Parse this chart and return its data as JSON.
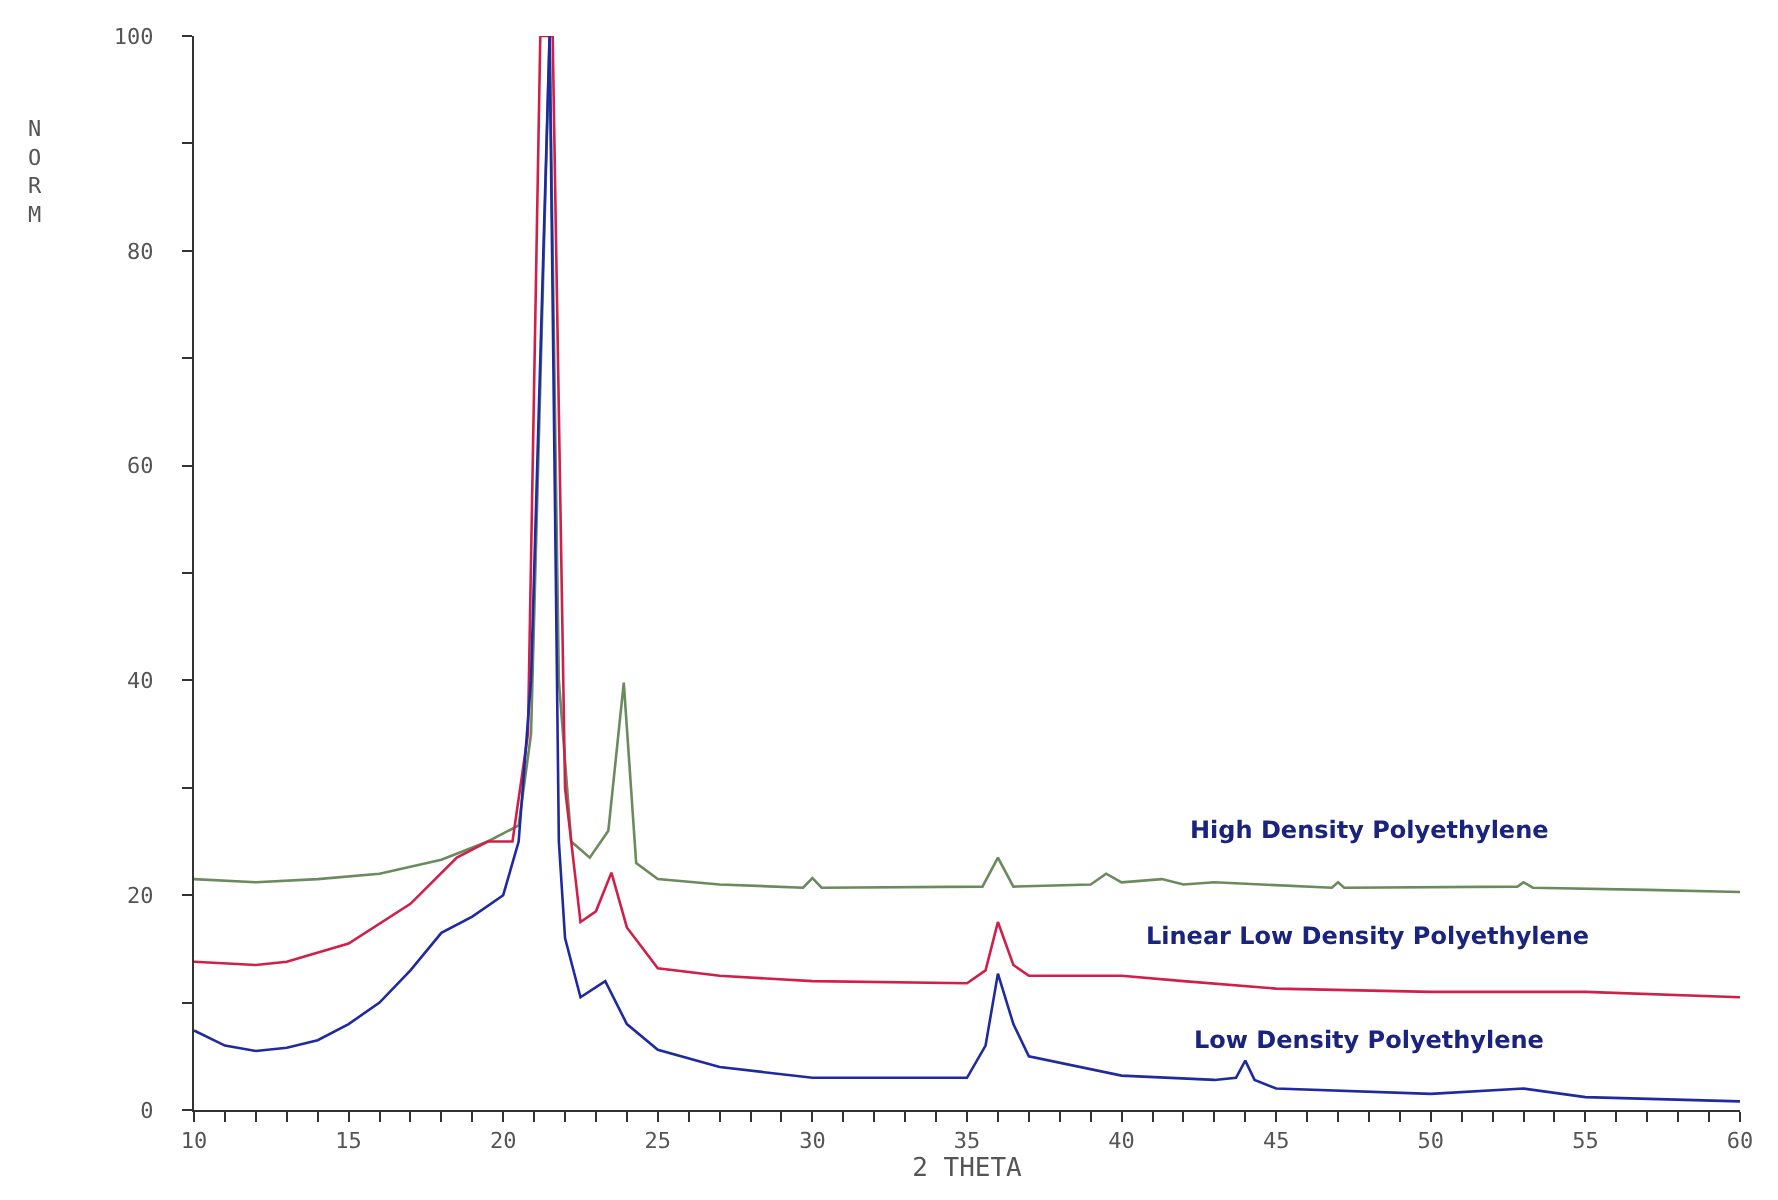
{
  "chart_data": {
    "type": "line",
    "xlabel": "2 THETA",
    "ylabel": "NORM",
    "xlim": [
      10,
      60
    ],
    "ylim": [
      0,
      100
    ],
    "xticks": [
      10,
      {
        "value": 11,
        "label": null
      },
      {
        "value": 12,
        "label": null
      },
      {
        "value": 13,
        "label": null
      },
      {
        "value": 14,
        "label": null
      },
      15,
      {
        "value": 16,
        "label": null
      },
      {
        "value": 17,
        "label": null
      },
      {
        "value": 18,
        "label": null
      },
      {
        "value": 19,
        "label": null
      },
      20,
      {
        "value": 21,
        "label": null
      },
      {
        "value": 22,
        "label": null
      },
      {
        "value": 23,
        "label": null
      },
      {
        "value": 24,
        "label": null
      },
      25,
      {
        "value": 26,
        "label": null
      },
      {
        "value": 27,
        "label": null
      },
      {
        "value": 28,
        "label": null
      },
      {
        "value": 29,
        "label": null
      },
      30,
      {
        "value": 31,
        "label": null
      },
      {
        "value": 32,
        "label": null
      },
      {
        "value": 33,
        "label": null
      },
      {
        "value": 34,
        "label": null
      },
      35,
      {
        "value": 36,
        "label": null
      },
      {
        "value": 37,
        "label": null
      },
      {
        "value": 38,
        "label": null
      },
      {
        "value": 39,
        "label": null
      },
      40,
      {
        "value": 41,
        "label": null
      },
      {
        "value": 42,
        "label": null
      },
      {
        "value": 43,
        "label": null
      },
      {
        "value": 44,
        "label": null
      },
      45,
      {
        "value": 46,
        "label": null
      },
      {
        "value": 47,
        "label": null
      },
      {
        "value": 48,
        "label": null
      },
      {
        "value": 49,
        "label": null
      },
      50,
      {
        "value": 51,
        "label": null
      },
      {
        "value": 52,
        "label": null
      },
      {
        "value": 53,
        "label": null
      },
      {
        "value": 54,
        "label": null
      },
      55,
      {
        "value": 56,
        "label": null
      },
      {
        "value": 57,
        "label": null
      },
      {
        "value": 58,
        "label": null
      },
      {
        "value": 59,
        "label": null
      },
      60
    ],
    "yticks": [
      0,
      {
        "value": 10,
        "label": null
      },
      20,
      {
        "value": 30,
        "label": null
      },
      40,
      {
        "value": 50,
        "label": null
      },
      60,
      {
        "value": 70,
        "label": null
      },
      80,
      {
        "value": 90,
        "label": null
      },
      100
    ],
    "legend": false,
    "marker": "none",
    "line_style": "solid",
    "series": [
      {
        "name": "High Density Polyethylene",
        "color": "#6b8a5e",
        "x": [
          10,
          12,
          14,
          16,
          18,
          19.5,
          20.5,
          20.9,
          21.5,
          21.8,
          22.2,
          22.8,
          23.4,
          23.9,
          24.3,
          25,
          27,
          29.7,
          30,
          30.3,
          35.5,
          36,
          36.5,
          39,
          39.5,
          40,
          41.3,
          42,
          43,
          46.8,
          47,
          47.2,
          52.8,
          53,
          53.3,
          57,
          60
        ],
        "values": [
          21.5,
          21.2,
          21.5,
          22,
          23.3,
          25,
          26.5,
          35,
          100,
          40,
          25,
          23.5,
          26,
          39.8,
          23,
          21.5,
          21,
          20.7,
          21.6,
          20.7,
          20.8,
          23.5,
          20.8,
          21,
          22,
          21.2,
          21.5,
          21,
          21.2,
          20.7,
          21.2,
          20.7,
          20.8,
          21.2,
          20.7,
          20.5,
          20.3
        ]
      },
      {
        "name": "Linear Low Density Polyethylene",
        "color": "#d0204a",
        "x": [
          10,
          12,
          13,
          15,
          17,
          18.5,
          19.5,
          20.3,
          20.8,
          21.2,
          21.6,
          22,
          22.5,
          23,
          23.5,
          24,
          25,
          27,
          30,
          35,
          35.6,
          36,
          36.5,
          37,
          40,
          42,
          45,
          50,
          55,
          60
        ],
        "values": [
          13.8,
          13.5,
          13.8,
          15.5,
          19.2,
          23.5,
          25,
          25,
          35,
          100,
          100,
          30,
          17.5,
          18.5,
          22.1,
          17,
          13.2,
          12.5,
          12,
          11.8,
          13,
          17.5,
          13.5,
          12.5,
          12.5,
          12,
          11.3,
          11,
          11,
          10.5
        ]
      },
      {
        "name": "Low Density Polyethylene",
        "color": "#1f2aa0",
        "x": [
          10,
          11,
          12,
          13,
          14,
          15,
          16,
          17,
          18,
          19,
          20,
          20.5,
          20.9,
          21.2,
          21.5,
          21.8,
          22,
          22.5,
          23.3,
          24,
          25,
          27,
          30,
          35,
          35.6,
          36,
          36.5,
          37,
          40,
          43,
          43.7,
          44,
          44.3,
          45,
          50,
          53,
          55,
          60
        ],
        "values": [
          7.4,
          6,
          5.5,
          5.8,
          6.5,
          8,
          10,
          13,
          16.5,
          18,
          20,
          25,
          40,
          70,
          100,
          25,
          16,
          10.5,
          12,
          8,
          5.6,
          4,
          3,
          3,
          6,
          12.7,
          8,
          5,
          3.2,
          2.8,
          3,
          4.6,
          2.8,
          2,
          1.5,
          2,
          1.2,
          0.8
        ]
      }
    ]
  }
}
